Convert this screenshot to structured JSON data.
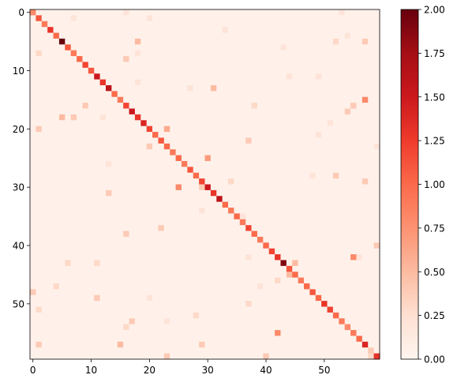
{
  "chart_data": {
    "type": "heatmap",
    "title": "",
    "xlabel": "",
    "ylabel": "",
    "n_rows": 60,
    "n_cols": 60,
    "xlim": [
      -0.5,
      59.5
    ],
    "ylim": [
      59.5,
      -0.5
    ],
    "x_ticks": [
      0,
      10,
      20,
      30,
      40,
      50
    ],
    "y_ticks": [
      0,
      10,
      20,
      30,
      40,
      50
    ],
    "colormap": "Reds",
    "colorbar": {
      "min": 0.0,
      "max": 2.0,
      "ticks": [
        0.0,
        0.25,
        0.5,
        0.75,
        1.0,
        1.25,
        1.5,
        1.75,
        2.0
      ],
      "tick_labels": [
        "0.00",
        "0.25",
        "0.50",
        "0.75",
        "1.00",
        "1.25",
        "1.50",
        "1.75",
        "2.00"
      ]
    },
    "background_value": 0.05,
    "diagonal": [
      0.8,
      1.1,
      0.9,
      1.3,
      1.0,
      2.0,
      1.1,
      0.9,
      1.0,
      1.2,
      1.1,
      1.5,
      1.3,
      1.6,
      1.0,
      0.9,
      1.2,
      1.5,
      1.3,
      1.4,
      1.2,
      1.0,
      1.1,
      1.0,
      0.9,
      1.0,
      0.9,
      1.1,
      1.0,
      1.2,
      1.5,
      1.3,
      1.6,
      1.0,
      0.9,
      1.0,
      0.9,
      1.2,
      1.0,
      0.9,
      1.0,
      1.2,
      1.3,
      1.9,
      1.1,
      1.0,
      0.9,
      1.0,
      1.1,
      1.0,
      1.3,
      1.2,
      1.0,
      0.9,
      0.8,
      0.9,
      1.0,
      1.4,
      0.4,
      1.3
    ],
    "off_diagonal": [
      [
        0,
        16,
        0.2
      ],
      [
        0,
        53,
        0.2
      ],
      [
        1,
        20,
        0.2
      ],
      [
        1,
        7,
        0.2
      ],
      [
        3,
        33,
        0.2
      ],
      [
        4,
        54,
        0.2
      ],
      [
        5,
        18,
        0.5
      ],
      [
        5,
        52,
        0.3
      ],
      [
        5,
        57,
        0.4
      ],
      [
        6,
        43,
        0.2
      ],
      [
        7,
        1,
        0.3
      ],
      [
        7,
        18,
        0.2
      ],
      [
        8,
        16,
        0.4
      ],
      [
        11,
        44,
        0.2
      ],
      [
        11,
        49,
        0.2
      ],
      [
        12,
        18,
        0.2
      ],
      [
        13,
        31,
        0.5
      ],
      [
        13,
        27,
        0.2
      ],
      [
        15,
        57,
        0.8
      ],
      [
        16,
        9,
        0.4
      ],
      [
        16,
        38,
        0.3
      ],
      [
        16,
        55,
        0.4
      ],
      [
        17,
        54,
        0.4
      ],
      [
        18,
        5,
        0.5
      ],
      [
        18,
        7,
        0.4
      ],
      [
        18,
        12,
        0.2
      ],
      [
        19,
        51,
        0.2
      ],
      [
        20,
        1,
        0.4
      ],
      [
        20,
        23,
        0.6
      ],
      [
        21,
        49,
        0.2
      ],
      [
        22,
        37,
        0.4
      ],
      [
        23,
        20,
        0.4
      ],
      [
        23,
        59,
        0.2
      ],
      [
        25,
        30,
        0.7
      ],
      [
        26,
        13,
        0.2
      ],
      [
        28,
        52,
        0.4
      ],
      [
        28,
        48,
        0.2
      ],
      [
        29,
        34,
        0.3
      ],
      [
        29,
        57,
        0.4
      ],
      [
        30,
        25,
        0.8
      ],
      [
        30,
        29,
        0.4
      ],
      [
        31,
        13,
        0.4
      ],
      [
        34,
        29,
        0.2
      ],
      [
        35,
        36,
        0.2
      ],
      [
        37,
        22,
        0.4
      ],
      [
        38,
        16,
        0.4
      ],
      [
        40,
        59,
        0.4
      ],
      [
        42,
        55,
        0.8
      ],
      [
        42,
        37,
        0.2
      ],
      [
        42,
        56,
        0.2
      ],
      [
        43,
        6,
        0.3
      ],
      [
        43,
        11,
        0.3
      ],
      [
        43,
        45,
        0.5
      ],
      [
        45,
        44,
        0.5
      ],
      [
        46,
        42,
        0.3
      ],
      [
        47,
        4,
        0.3
      ],
      [
        47,
        39,
        0.2
      ],
      [
        48,
        0,
        0.4
      ],
      [
        49,
        11,
        0.4
      ],
      [
        49,
        20,
        0.2
      ],
      [
        50,
        37,
        0.3
      ],
      [
        51,
        1,
        0.3
      ],
      [
        52,
        28,
        0.3
      ],
      [
        53,
        17,
        0.4
      ],
      [
        53,
        23,
        0.2
      ],
      [
        54,
        16,
        0.3
      ],
      [
        55,
        42,
        0.8
      ],
      [
        57,
        1,
        0.4
      ],
      [
        57,
        15,
        0.5
      ],
      [
        57,
        29,
        0.4
      ],
      [
        59,
        23,
        0.4
      ],
      [
        59,
        40,
        0.4
      ],
      [
        59,
        58,
        0.3
      ]
    ]
  }
}
